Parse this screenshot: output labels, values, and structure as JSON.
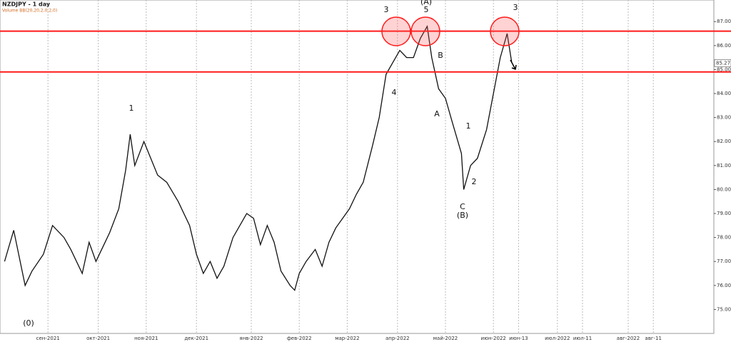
{
  "chart_data": {
    "type": "line",
    "title": "NZDJPY - 1 day",
    "subtitle": "Volume BB(20,20,2,0,2,0)",
    "x": [
      2,
      6,
      11,
      14,
      19,
      23,
      28,
      31,
      36,
      39,
      42,
      45,
      48,
      52,
      55,
      57,
      59,
      63,
      66,
      69,
      73,
      78,
      83,
      86,
      89,
      92,
      95,
      98,
      102,
      105,
      108,
      111,
      114,
      117,
      120,
      123,
      127,
      129,
      131,
      134,
      138,
      141,
      144,
      147,
      150,
      153,
      156,
      159,
      163,
      166,
      169,
      172,
      175,
      178,
      181,
      184,
      187,
      189,
      192,
      195,
      198,
      202,
      203,
      206,
      209,
      213,
      216,
      219,
      222,
      224
    ],
    "series": [
      {
        "name": "NZDJPY",
        "color": "#111111",
        "values": [
          77.0,
          78.3,
          76.0,
          76.6,
          77.3,
          78.5,
          78.0,
          77.5,
          76.5,
          77.8,
          77.0,
          77.6,
          78.2,
          79.2,
          80.8,
          82.3,
          81.0,
          82.0,
          81.3,
          80.6,
          80.3,
          79.5,
          78.5,
          77.3,
          76.5,
          77.0,
          76.3,
          76.8,
          78.0,
          78.5,
          79.0,
          78.8,
          77.7,
          78.5,
          77.8,
          76.6,
          76.0,
          75.8,
          76.5,
          77.0,
          77.5,
          76.8,
          77.8,
          78.4,
          78.8,
          79.2,
          79.8,
          80.3,
          81.8,
          83.0,
          84.8,
          85.3,
          85.8,
          85.5,
          85.5,
          86.3,
          86.8,
          85.5,
          84.2,
          83.8,
          82.8,
          81.5,
          80.0,
          81.0,
          81.3,
          82.5,
          84.0,
          85.5,
          86.5,
          85.3
        ]
      }
    ],
    "xlim": [
      0,
      312.5
    ],
    "xticks": [
      {
        "value": 21,
        "label": "сен-2021"
      },
      {
        "value": 43,
        "label": "окт-2021"
      },
      {
        "value": 64,
        "label": "ноя-2021"
      },
      {
        "value": 86,
        "label": "дек-2021"
      },
      {
        "value": 110,
        "label": "янв-2022"
      },
      {
        "value": 131,
        "label": "фев-2022"
      },
      {
        "value": 152,
        "label": "мар-2022"
      },
      {
        "value": 174,
        "label": "апр-2022"
      },
      {
        "value": 195,
        "label": "май-2022"
      },
      {
        "value": 216,
        "label": "июн-2022"
      },
      {
        "value": 227,
        "label": "июн-13"
      },
      {
        "value": 244,
        "label": "июл-2022"
      },
      {
        "value": 255,
        "label": "июл-11"
      },
      {
        "value": 275,
        "label": "авг-2022"
      },
      {
        "value": 286,
        "label": "авг-11"
      }
    ],
    "ylim": [
      74,
      87.9
    ],
    "yticks": [
      {
        "value": 75,
        "label": "75.00"
      },
      {
        "value": 76,
        "label": "76.00"
      },
      {
        "value": 77,
        "label": "77.00"
      },
      {
        "value": 78,
        "label": "78.00"
      },
      {
        "value": 79,
        "label": "79.00"
      },
      {
        "value": 80,
        "label": "80.00"
      },
      {
        "value": 81,
        "label": "81.00"
      },
      {
        "value": 82,
        "label": "82.00"
      },
      {
        "value": 83,
        "label": "83.00"
      },
      {
        "value": 84,
        "label": "84.00"
      },
      {
        "value": 85,
        "label": "85.00"
      },
      {
        "value": 86,
        "label": "86.00"
      },
      {
        "value": 87,
        "label": "87.00"
      }
    ],
    "grid": true,
    "levels": [
      86.6,
      84.9
    ],
    "level_color": "#ff1a1a",
    "last_price": 85.27,
    "annotations": [
      "3",
      "(A)",
      "5",
      "3",
      "B",
      "4",
      "A",
      "1",
      "2",
      "C",
      "(B)",
      "1",
      "(0)"
    ]
  }
}
